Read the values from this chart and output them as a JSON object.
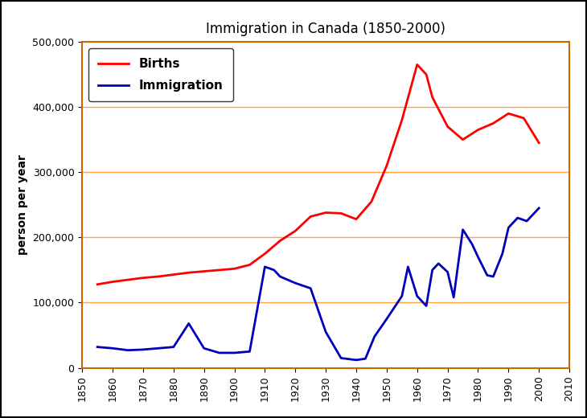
{
  "title": "Immigration in Canada (1850-2000)",
  "ylabel": "person per year",
  "xlim": [
    1850,
    2010
  ],
  "ylim": [
    0,
    500000
  ],
  "yticks": [
    0,
    100000,
    200000,
    300000,
    400000,
    500000
  ],
  "xticks": [
    1850,
    1860,
    1870,
    1880,
    1890,
    1900,
    1910,
    1920,
    1930,
    1940,
    1950,
    1960,
    1970,
    1980,
    1990,
    2000,
    2010
  ],
  "births_color": "#FF0000",
  "immigration_color": "#0000BB",
  "grid_color": "#FFA040",
  "bg_color": "#FFFFFF",
  "outer_border_color": "#000000",
  "inner_border_color": "#CC6600",
  "births_x": [
    1855,
    1860,
    1865,
    1870,
    1875,
    1880,
    1885,
    1890,
    1895,
    1900,
    1905,
    1910,
    1915,
    1920,
    1925,
    1930,
    1935,
    1940,
    1945,
    1950,
    1955,
    1960,
    1963,
    1965,
    1970,
    1975,
    1980,
    1985,
    1990,
    1995,
    2000
  ],
  "births_y": [
    128000,
    132000,
    135000,
    138000,
    140000,
    143000,
    146000,
    148000,
    150000,
    152000,
    158000,
    175000,
    195000,
    210000,
    232000,
    238000,
    237000,
    228000,
    255000,
    310000,
    380000,
    465000,
    450000,
    415000,
    370000,
    350000,
    365000,
    375000,
    390000,
    383000,
    345000
  ],
  "immigration_x": [
    1855,
    1860,
    1865,
    1870,
    1875,
    1880,
    1885,
    1890,
    1895,
    1900,
    1905,
    1910,
    1913,
    1915,
    1920,
    1925,
    1930,
    1935,
    1940,
    1943,
    1946,
    1950,
    1955,
    1957,
    1960,
    1963,
    1965,
    1967,
    1970,
    1972,
    1975,
    1978,
    1980,
    1983,
    1985,
    1988,
    1990,
    1993,
    1996,
    2000
  ],
  "immigration_y": [
    32000,
    30000,
    27000,
    28000,
    30000,
    32000,
    68000,
    30000,
    23000,
    23000,
    25000,
    155000,
    150000,
    140000,
    130000,
    122000,
    55000,
    15000,
    12000,
    14000,
    48000,
    75000,
    110000,
    155000,
    110000,
    95000,
    150000,
    160000,
    147000,
    108000,
    212000,
    190000,
    170000,
    142000,
    140000,
    175000,
    215000,
    230000,
    225000,
    245000
  ],
  "legend_fontsize": 11,
  "tick_fontsize": 9,
  "title_fontsize": 12,
  "ylabel_fontsize": 10,
  "linewidth": 2.0
}
